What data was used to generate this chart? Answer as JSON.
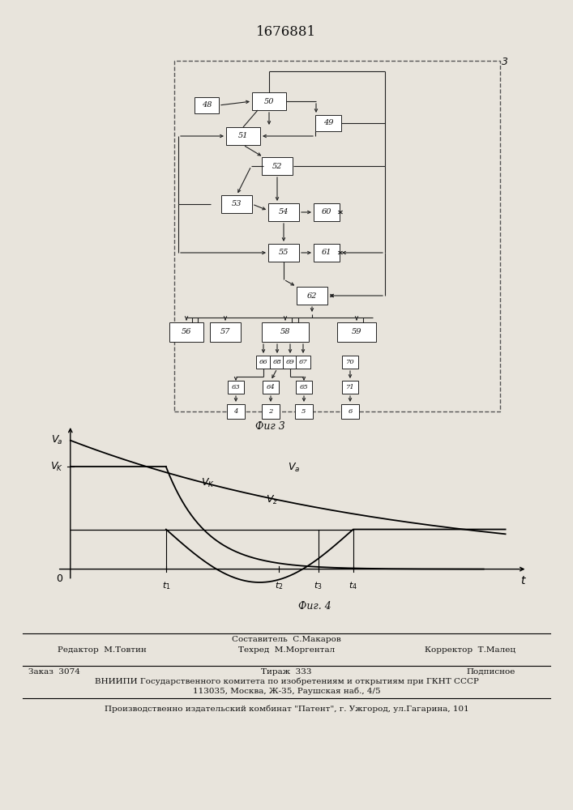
{
  "patent_number": "1676881",
  "fig3_label": "Фиг 3",
  "fig4_label": "Фиг. 4",
  "bg": "#e8e4dc",
  "block_fill": "#ffffff",
  "lc": "#222222"
}
